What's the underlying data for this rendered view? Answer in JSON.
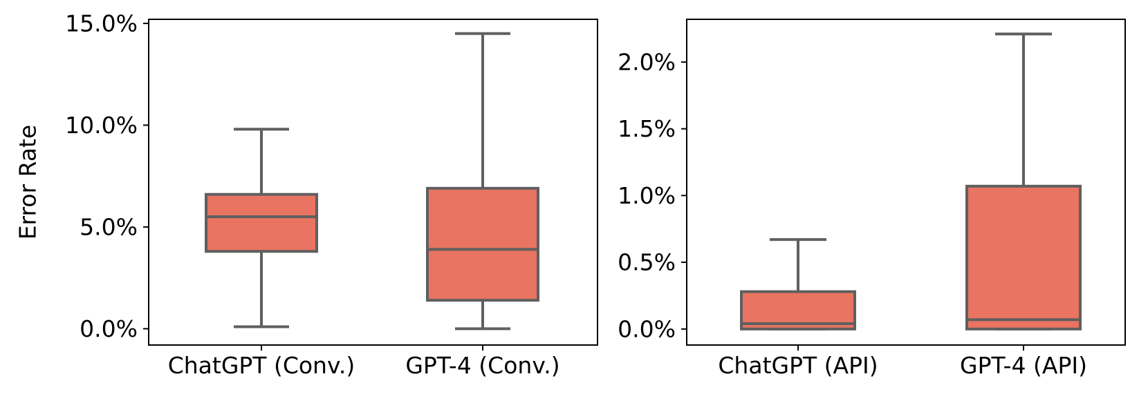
{
  "colors": {
    "box_fill": "#e87461",
    "box_edge": "#5f5f5f",
    "frame": "#000000",
    "background": "#ffffff"
  },
  "chart_data": [
    {
      "type": "box",
      "ylabel": "Error Rate",
      "xlabel": "",
      "ylim": [
        -0.8,
        15.2
      ],
      "yticks": [
        {
          "value": 0.0,
          "label": "0.0%"
        },
        {
          "value": 5.0,
          "label": "5.0%"
        },
        {
          "value": 10.0,
          "label": "10.0%"
        },
        {
          "value": 15.0,
          "label": "15.0%"
        }
      ],
      "categories": [
        "ChatGPT (Conv.)",
        "GPT-4 (Conv.)"
      ],
      "boxes": [
        {
          "category": "ChatGPT (Conv.)",
          "whisker_low": 0.1,
          "q1": 3.8,
          "median": 5.5,
          "q3": 6.6,
          "whisker_high": 9.8
        },
        {
          "category": "GPT-4 (Conv.)",
          "whisker_low": 0.0,
          "q1": 1.4,
          "median": 3.9,
          "q3": 6.9,
          "whisker_high": 14.5
        }
      ]
    },
    {
      "type": "box",
      "ylabel": "",
      "xlabel": "",
      "ylim": [
        -0.12,
        2.32
      ],
      "yticks": [
        {
          "value": 0.0,
          "label": "0.0%"
        },
        {
          "value": 0.5,
          "label": "0.5%"
        },
        {
          "value": 1.0,
          "label": "1.0%"
        },
        {
          "value": 1.5,
          "label": "1.5%"
        },
        {
          "value": 2.0,
          "label": "2.0%"
        }
      ],
      "categories": [
        "ChatGPT (API)",
        "GPT-4 (API)"
      ],
      "boxes": [
        {
          "category": "ChatGPT (API)",
          "whisker_low": 0.0,
          "q1": 0.0,
          "median": 0.04,
          "q3": 0.28,
          "whisker_high": 0.67
        },
        {
          "category": "GPT-4 (API)",
          "whisker_low": 0.0,
          "q1": 0.0,
          "median": 0.07,
          "q3": 1.07,
          "whisker_high": 2.21
        }
      ]
    }
  ]
}
